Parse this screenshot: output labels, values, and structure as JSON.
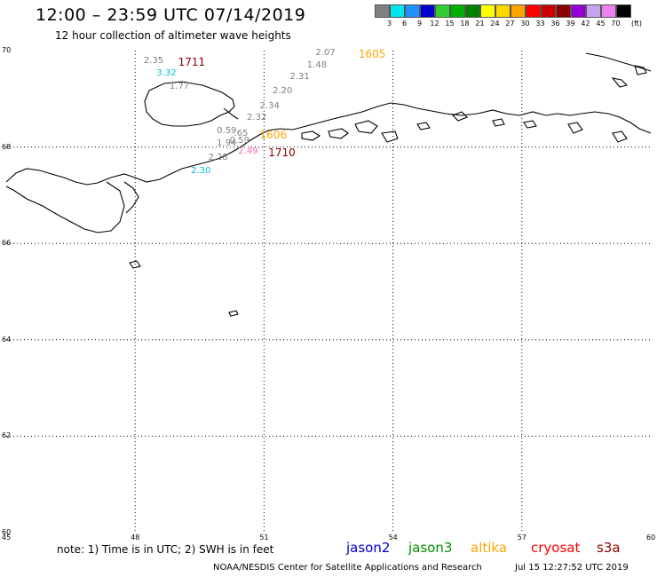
{
  "header": {
    "title": "12:00 – 23:59 UTC 07/14/2019",
    "subtitle": "12 hour collection of altimeter wave heights"
  },
  "colorbar": {
    "unit": "(ft)",
    "items": [
      {
        "label": "3",
        "color": "#808080"
      },
      {
        "label": "6",
        "color": "#00e5ee"
      },
      {
        "label": "9",
        "color": "#1e90ff"
      },
      {
        "label": "12",
        "color": "#0000cd"
      },
      {
        "label": "15",
        "color": "#32cd32"
      },
      {
        "label": "18",
        "color": "#00b000"
      },
      {
        "label": "21",
        "color": "#008000"
      },
      {
        "label": "24",
        "color": "#ffff00"
      },
      {
        "label": "27",
        "color": "#ffd700"
      },
      {
        "label": "30",
        "color": "#ffa500"
      },
      {
        "label": "33",
        "color": "#ff0000"
      },
      {
        "label": "36",
        "color": "#cc0000"
      },
      {
        "label": "39",
        "color": "#8b0000"
      },
      {
        "label": "42",
        "color": "#9400d3"
      },
      {
        "label": "45",
        "color": "#c8a2f0"
      },
      {
        "label": "70",
        "color": "#ee82ee"
      },
      {
        "label": "",
        "color": "#000000"
      }
    ]
  },
  "axes": {
    "lat_labels": [
      "70",
      "68",
      "66",
      "64",
      "62",
      "60"
    ],
    "lon_labels": [
      "45",
      "48",
      "51",
      "54",
      "57",
      "60"
    ],
    "lat_range": [
      60,
      70
    ],
    "lon_range": [
      45,
      60
    ]
  },
  "observations": [
    {
      "text": "2.07",
      "color": "#808080",
      "lon": 52.2,
      "lat": 70.0
    },
    {
      "text": "1605",
      "color": "#ffa500",
      "lon": 53.2,
      "lat": 70.0,
      "big": true
    },
    {
      "text": "2.35",
      "color": "#808080",
      "lon": 48.2,
      "lat": 69.83
    },
    {
      "text": "1711",
      "color": "#8b0000",
      "lon": 49.0,
      "lat": 69.83,
      "big": true
    },
    {
      "text": "1.48",
      "color": "#808080",
      "lon": 52.0,
      "lat": 69.75
    },
    {
      "text": "3.32",
      "color": "#00bcd4",
      "lon": 48.5,
      "lat": 69.58
    },
    {
      "text": "2.31",
      "color": "#808080",
      "lon": 51.6,
      "lat": 69.5
    },
    {
      "text": "1.77",
      "color": "#808080",
      "lon": 48.8,
      "lat": 69.3
    },
    {
      "text": "2.20",
      "color": "#808080",
      "lon": 51.2,
      "lat": 69.2
    },
    {
      "text": "2.34",
      "color": "#808080",
      "lon": 50.9,
      "lat": 68.9
    },
    {
      "text": "2.32",
      "color": "#808080",
      "lon": 50.6,
      "lat": 68.65
    },
    {
      "text": "0.59",
      "color": "#808080",
      "lon": 49.9,
      "lat": 68.38
    },
    {
      "text": ".65",
      "color": "#808080",
      "lon": 50.3,
      "lat": 68.33
    },
    {
      "text": "1606",
      "color": "#ffa500",
      "lon": 50.9,
      "lat": 68.33,
      "big": true
    },
    {
      "text": "1.94",
      "color": "#808080",
      "lon": 49.9,
      "lat": 68.12
    },
    {
      "text": "0.59",
      "color": "#808080",
      "lon": 50.2,
      "lat": 68.17
    },
    {
      "text": "2.49",
      "color": "#ff69b4",
      "lon": 50.4,
      "lat": 67.95
    },
    {
      "text": "1710",
      "color": "#8b0000",
      "lon": 51.1,
      "lat": 67.95,
      "big": true
    },
    {
      "text": "2.28",
      "color": "#808080",
      "lon": 49.7,
      "lat": 67.82
    },
    {
      "text": "2.30",
      "color": "#00bcd4",
      "lon": 49.3,
      "lat": 67.55
    }
  ],
  "footer": {
    "note": "note: 1) Time is in UTC; 2) SWH is in feet",
    "satellites": [
      {
        "name": "jason2",
        "color": "#0000cd"
      },
      {
        "name": "jason3",
        "color": "#009000"
      },
      {
        "name": "altika",
        "color": "#ffa500"
      },
      {
        "name": "cryosat",
        "color": "#ff0000"
      },
      {
        "name": "s3a",
        "color": "#8b0000"
      }
    ],
    "credit": "NOAA/NESDIS Center for Satellite Applications and Research",
    "timestamp": "Jul 15 12:27:52 UTC 2019"
  }
}
